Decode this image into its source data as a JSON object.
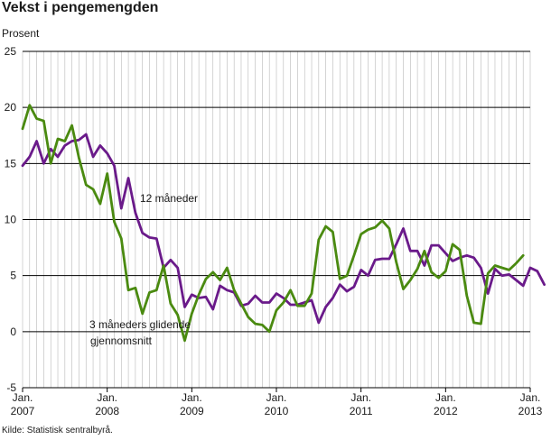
{
  "title": "Vekst i pengemengden",
  "unit_label": "Prosent",
  "source": "Kilde: Statistisk sentralbyrå.",
  "colors": {
    "series_12m": "#6a1a8a",
    "series_3m": "#4a8a10",
    "grid": "#b8b8b8",
    "axis": "#000000"
  },
  "chart_data": {
    "type": "line",
    "ylabel": "Prosent",
    "ylim": [
      -5,
      25
    ],
    "yticks": [
      -5,
      0,
      5,
      10,
      15,
      20,
      25
    ],
    "grid": "monthly vertical gridlines",
    "x_start": "2007-01",
    "x_end": "2013-01",
    "xtick_labels": [
      {
        "line1": "Jan.",
        "line2": "2007",
        "month": "2007-01"
      },
      {
        "line1": "Jan.",
        "line2": "2008",
        "month": "2008-01"
      },
      {
        "line1": "Jan.",
        "line2": "2009",
        "month": "2009-01"
      },
      {
        "line1": "Jan.",
        "line2": "2010",
        "month": "2010-01"
      },
      {
        "line1": "Jan.",
        "line2": "2011",
        "month": "2011-01"
      },
      {
        "line1": "Jan.",
        "line2": "2012",
        "month": "2012-01"
      },
      {
        "line1": "Jan.",
        "line2": "2013",
        "month": "2013-01"
      }
    ],
    "series": [
      {
        "name": "12 måneder",
        "label_line1": "12 måneder",
        "label_line2": "",
        "color": "#6a1a8a",
        "start_month": "2007-01",
        "values": [
          14.8,
          15.6,
          17.0,
          15.0,
          16.3,
          15.6,
          16.6,
          17.0,
          17.1,
          17.6,
          15.6,
          16.6,
          15.9,
          14.8,
          11.0,
          13.7,
          10.6,
          8.8,
          8.4,
          8.3,
          5.7,
          6.4,
          5.7,
          2.2,
          3.3,
          3.0,
          3.1,
          2.0,
          4.1,
          3.7,
          3.5,
          2.3,
          2.5,
          3.2,
          2.6,
          2.6,
          3.4,
          3.0,
          2.4,
          2.4,
          2.6,
          2.8,
          0.8,
          2.2,
          3.0,
          4.2,
          3.6,
          4.0,
          5.5,
          5.0,
          6.4,
          6.5,
          6.5,
          7.8,
          9.2,
          7.2,
          7.2,
          5.9,
          7.7,
          7.7,
          7.0,
          6.3,
          6.6,
          6.8,
          6.6,
          5.7,
          3.4,
          5.6,
          5.0,
          5.1,
          4.6,
          4.1,
          5.7,
          5.4,
          4.2
        ]
      },
      {
        "name": "3 måneders glidende gjennomsnitt",
        "label_line1": "3 måneders glidende",
        "label_line2": "gjennomsnitt",
        "color": "#4a8a10",
        "start_month": "2007-01",
        "values": [
          18.1,
          20.2,
          19.0,
          18.8,
          15.0,
          17.2,
          17.0,
          18.4,
          15.5,
          13.1,
          12.7,
          11.4,
          14.1,
          9.8,
          8.3,
          3.7,
          3.9,
          1.6,
          3.5,
          3.7,
          5.9,
          2.5,
          1.5,
          -0.8,
          1.6,
          3.3,
          4.7,
          5.3,
          4.6,
          5.7,
          3.7,
          2.5,
          1.3,
          0.7,
          0.6,
          0.0,
          1.9,
          2.6,
          3.7,
          2.3,
          2.3,
          3.4,
          8.2,
          9.4,
          8.9,
          4.7,
          5.0,
          6.8,
          8.7,
          9.1,
          9.3,
          9.9,
          9.2,
          6.2,
          3.8,
          4.6,
          5.6,
          7.2,
          5.3,
          4.8,
          5.4,
          7.8,
          7.3,
          3.2,
          0.8,
          0.7,
          5.2,
          5.9,
          5.7,
          5.5,
          6.1,
          6.8
        ]
      }
    ]
  }
}
